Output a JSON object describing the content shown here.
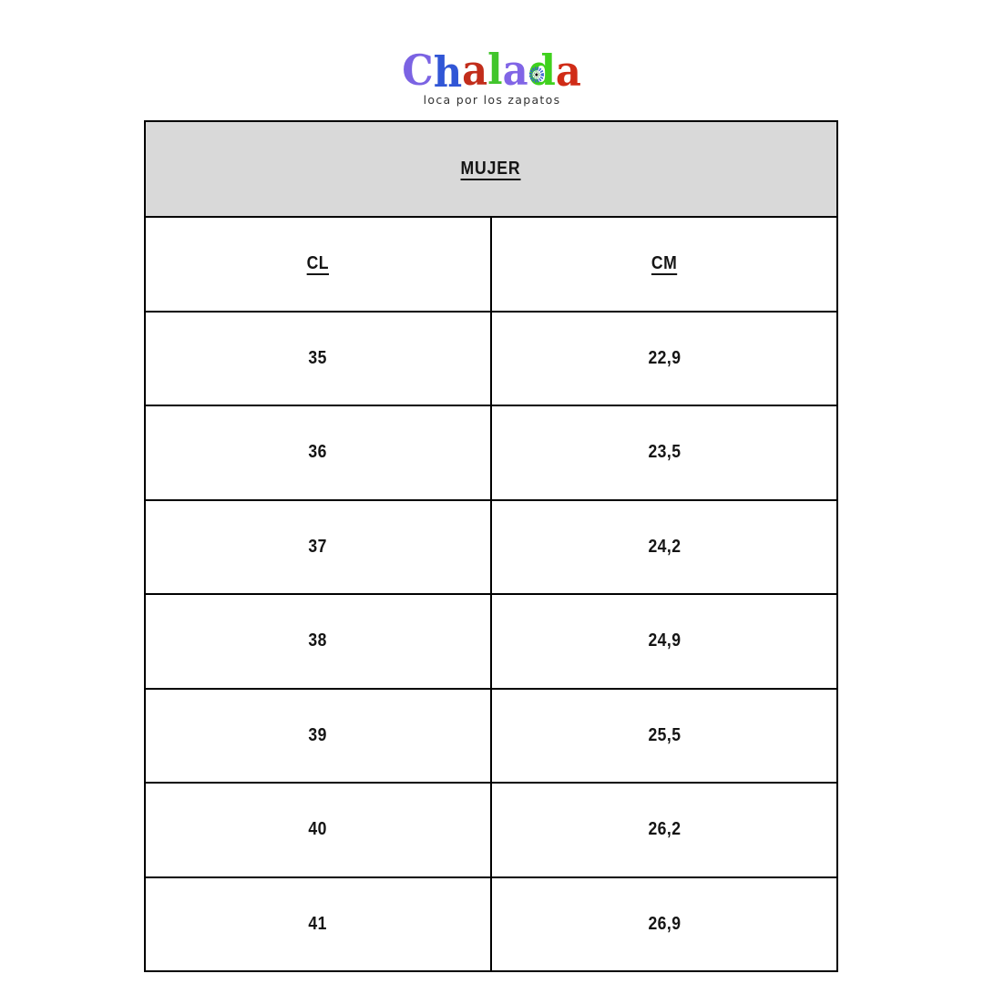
{
  "brand": {
    "name": "Chalada",
    "tagline": "loca por los zapatos",
    "letters": [
      {
        "char": "C",
        "color": "#7b63e3"
      },
      {
        "char": "h",
        "color": "#3156d6"
      },
      {
        "char": "a",
        "color": "#c22d1b"
      },
      {
        "char": "l",
        "color": "#41c52c"
      },
      {
        "char": "a",
        "color": "#8165e6"
      },
      {
        "char": "d",
        "color": "#3fd11d",
        "icon": "mandala-icon"
      },
      {
        "char": "a",
        "color": "#d02c17"
      }
    ],
    "mandala_colors": {
      "outer_ring": "#3560cf",
      "inner_ring": "#ffffff",
      "dot_ring": "#2f9e3c",
      "center": "#101010"
    }
  },
  "size_chart": {
    "title": "MUJER",
    "columns": [
      "CL",
      "CM"
    ],
    "rows": [
      {
        "cl": "35",
        "cm": "22,9"
      },
      {
        "cl": "36",
        "cm": "23,5"
      },
      {
        "cl": "37",
        "cm": "24,2"
      },
      {
        "cl": "38",
        "cm": "24,9"
      },
      {
        "cl": "39",
        "cm": "25,5"
      },
      {
        "cl": "40",
        "cm": "26,2"
      },
      {
        "cl": "41",
        "cm": "26,9"
      }
    ]
  },
  "colors": {
    "title_row_bg": "#d9d9d9",
    "table_border": "#000000",
    "text": "#151515",
    "tagline_text": "#333333"
  }
}
